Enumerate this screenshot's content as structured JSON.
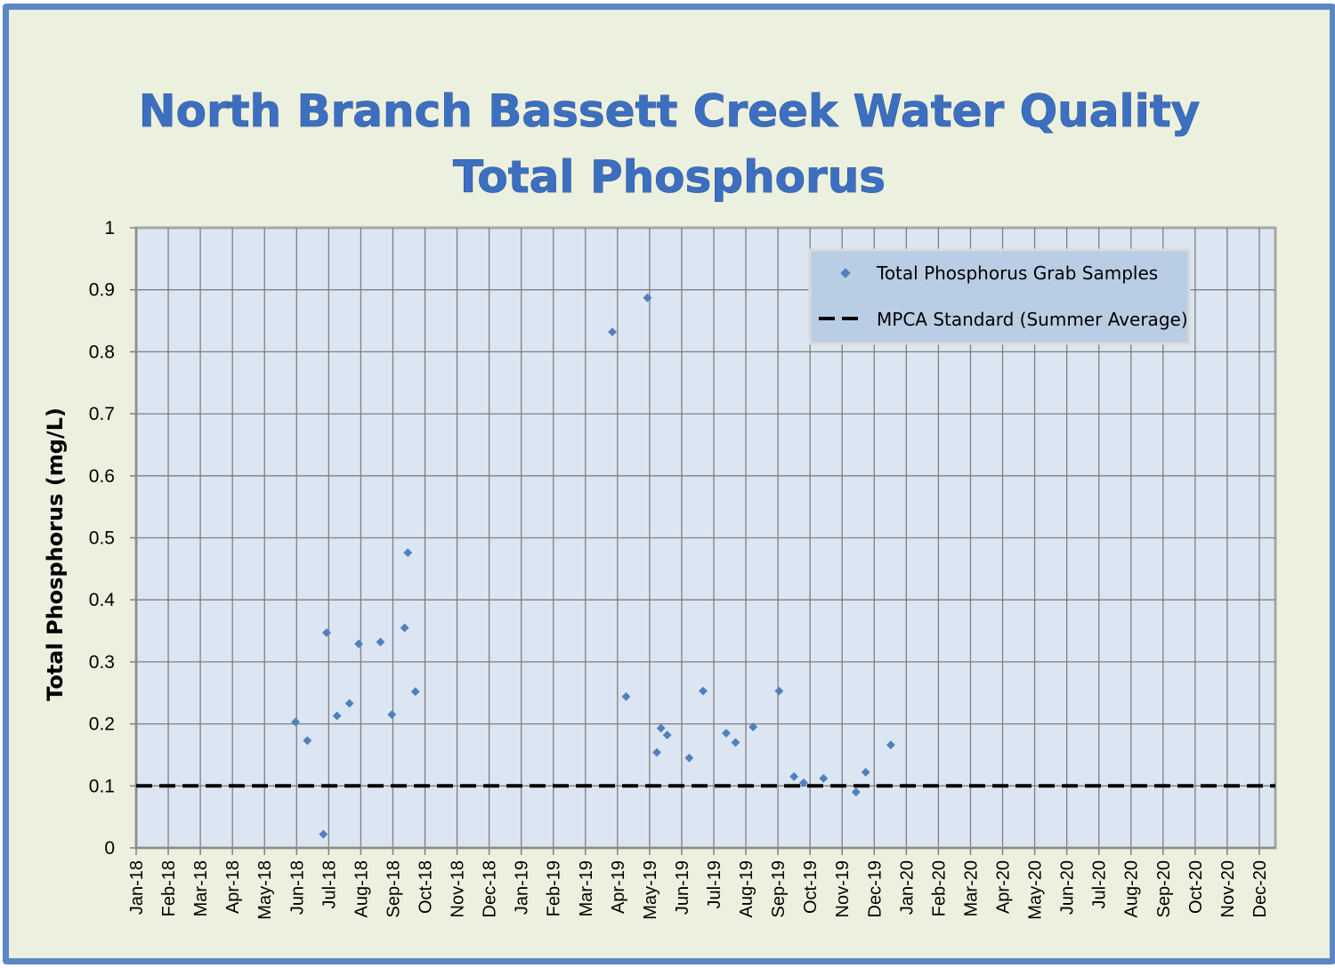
{
  "chart_data": {
    "type": "scatter",
    "title_lines": [
      "North Branch Bassett Creek Water Quality",
      "Total Phosphorus"
    ],
    "ylabel": "Total Phosphorus (mg/L)",
    "xlabel": "",
    "ylim": [
      0,
      1
    ],
    "y_ticks": [
      "0",
      "0.1",
      "0.2",
      "0.3",
      "0.4",
      "0.5",
      "0.6",
      "0.7",
      "0.8",
      "0.9",
      "1"
    ],
    "x_tick_labels": [
      "Jan-18",
      "Feb-18",
      "Mar-18",
      "Apr-18",
      "May-18",
      "Jun-18",
      "Jul-18",
      "Aug-18",
      "Sep-18",
      "Oct-18",
      "Nov-18",
      "Dec-18",
      "Jan-19",
      "Feb-19",
      "Mar-19",
      "Apr-19",
      "May-19",
      "Jun-19",
      "Jul-19",
      "Aug-19",
      "Sep-19",
      "Oct-19",
      "Nov-19",
      "Dec-19",
      "Jan-20",
      "Feb-20",
      "Mar-20",
      "Apr-20",
      "May-20",
      "Jun-20",
      "Jul-20",
      "Aug-20",
      "Sep-20",
      "Oct-20",
      "Nov-20",
      "Dec-20"
    ],
    "xlim": [
      "2018-01-01",
      "2020-12-01"
    ],
    "grid": true,
    "legend_position": "top-right",
    "series": [
      {
        "name": "Total Phosphorus Grab Samples",
        "kind": "scatter",
        "color": "#4f81bd",
        "points": [
          {
            "x": "2018-05-31",
            "y": 0.203
          },
          {
            "x": "2018-06-11",
            "y": 0.173
          },
          {
            "x": "2018-06-26",
            "y": 0.022
          },
          {
            "x": "2018-06-29",
            "y": 0.347
          },
          {
            "x": "2018-07-09",
            "y": 0.213
          },
          {
            "x": "2018-07-21",
            "y": 0.233
          },
          {
            "x": "2018-07-30",
            "y": 0.329
          },
          {
            "x": "2018-08-20",
            "y": 0.332
          },
          {
            "x": "2018-08-31",
            "y": 0.215
          },
          {
            "x": "2018-09-12",
            "y": 0.355
          },
          {
            "x": "2018-09-15",
            "y": 0.476
          },
          {
            "x": "2018-09-22",
            "y": 0.252
          },
          {
            "x": "2019-03-27",
            "y": 0.832
          },
          {
            "x": "2019-04-09",
            "y": 0.244
          },
          {
            "x": "2019-04-29",
            "y": 0.887
          },
          {
            "x": "2019-05-08",
            "y": 0.154
          },
          {
            "x": "2019-05-12",
            "y": 0.193
          },
          {
            "x": "2019-05-18",
            "y": 0.182
          },
          {
            "x": "2019-06-08",
            "y": 0.145
          },
          {
            "x": "2019-06-21",
            "y": 0.253
          },
          {
            "x": "2019-07-13",
            "y": 0.185
          },
          {
            "x": "2019-07-22",
            "y": 0.17
          },
          {
            "x": "2019-08-08",
            "y": 0.195
          },
          {
            "x": "2019-09-02",
            "y": 0.253
          },
          {
            "x": "2019-09-16",
            "y": 0.115
          },
          {
            "x": "2019-09-25",
            "y": 0.105
          },
          {
            "x": "2019-10-14",
            "y": 0.112
          },
          {
            "x": "2019-11-14",
            "y": 0.09
          },
          {
            "x": "2019-11-23",
            "y": 0.122
          },
          {
            "x": "2019-12-17",
            "y": 0.166
          }
        ]
      },
      {
        "name": "MPCA Standard (Summer Average)",
        "kind": "dashed-line",
        "color": "#000000",
        "x": [
          "2018-01-01",
          "2020-12-01"
        ],
        "y": [
          0.1,
          0.1
        ]
      }
    ]
  },
  "colors": {
    "background": "#ebf1de",
    "frame": "#5b87c4",
    "plot_area": "#dce6f2",
    "grid": "#7f7f7f",
    "legend_bg": "#b9cde5",
    "title": "#3d6fc1"
  }
}
